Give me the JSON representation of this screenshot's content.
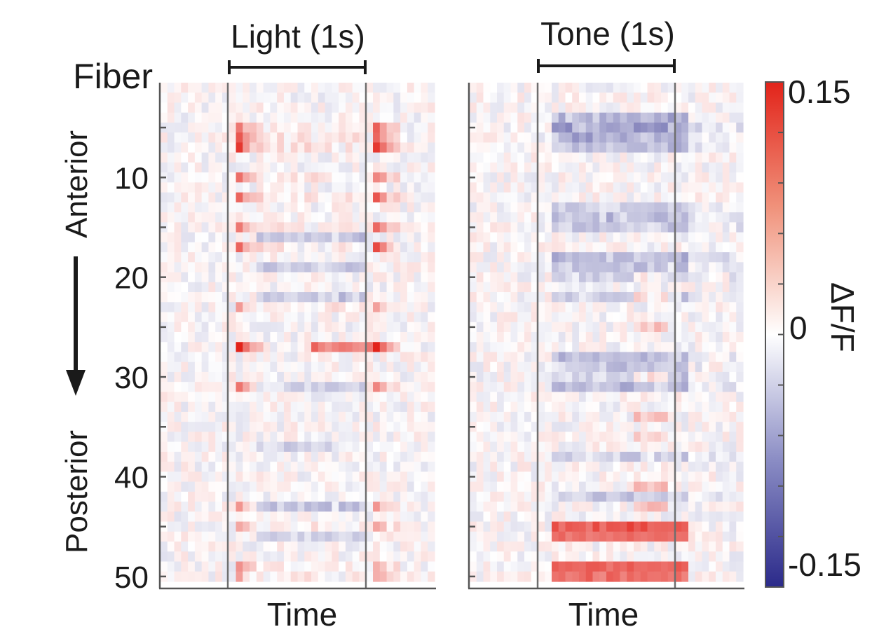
{
  "chart_data": {
    "type": "heatmap",
    "y_title": "Fiber",
    "y_ticks": [
      10,
      20,
      30,
      40,
      50
    ],
    "y_range": [
      1,
      50
    ],
    "anterior_label": "Anterior",
    "posterior_label": "Posterior",
    "n_fibers": 50,
    "n_time_bins": 40,
    "panels": [
      {
        "name": "light",
        "stimulus_label": "Light (1s)",
        "xlabel": "Time",
        "stim_onset_bin": 10,
        "stim_offset_bin": 30,
        "responding_fibers": {
          "5": 0.09,
          "6": 0.11,
          "7": 0.13,
          "10": 0.08,
          "12": 0.1,
          "15": 0.09,
          "17": 0.11,
          "23": 0.06,
          "27": 0.15,
          "31": 0.08,
          "43": 0.06,
          "45": 0.05,
          "49": 0.06,
          "50": 0.05
        },
        "late_response_fiber": 27,
        "late_response_value": 0.09,
        "suppressed_fibers": {
          "16": -0.03,
          "19": -0.025,
          "22": -0.03,
          "31": -0.025,
          "37": -0.02,
          "43": -0.03,
          "46": -0.02
        }
      },
      {
        "name": "tone",
        "stimulus_label": "Tone (1s)",
        "xlabel": "Time",
        "stim_onset_bin": 10,
        "stim_offset_bin": 30,
        "responding_fibers": {
          "45": 0.11,
          "46": 0.09,
          "49": 0.1,
          "50": 0.09
        },
        "suppressed_fibers": {
          "4": -0.05,
          "5": -0.06,
          "6": -0.05,
          "7": -0.04,
          "13": -0.03,
          "14": -0.035,
          "15": -0.03,
          "18": -0.04,
          "19": -0.035,
          "20": -0.03,
          "22": -0.025,
          "28": -0.045,
          "29": -0.035,
          "30": -0.03,
          "31": -0.04,
          "38": -0.025,
          "42": -0.03
        },
        "positive_patches": {
          "20": 0.03,
          "22": 0.035,
          "25": 0.03,
          "30": 0.035,
          "34": 0.03,
          "36": 0.025,
          "41": 0.035,
          "43": 0.03
        }
      }
    ],
    "colorbar": {
      "label": "ΔF/F",
      "max": 0.15,
      "mid": 0,
      "min": -0.15,
      "max_label": "0.15",
      "mid_label": "0",
      "min_label": "-0.15",
      "colors": {
        "max": "#e2231a",
        "mid": "#ffffff",
        "min": "#2b2a8a"
      }
    }
  }
}
